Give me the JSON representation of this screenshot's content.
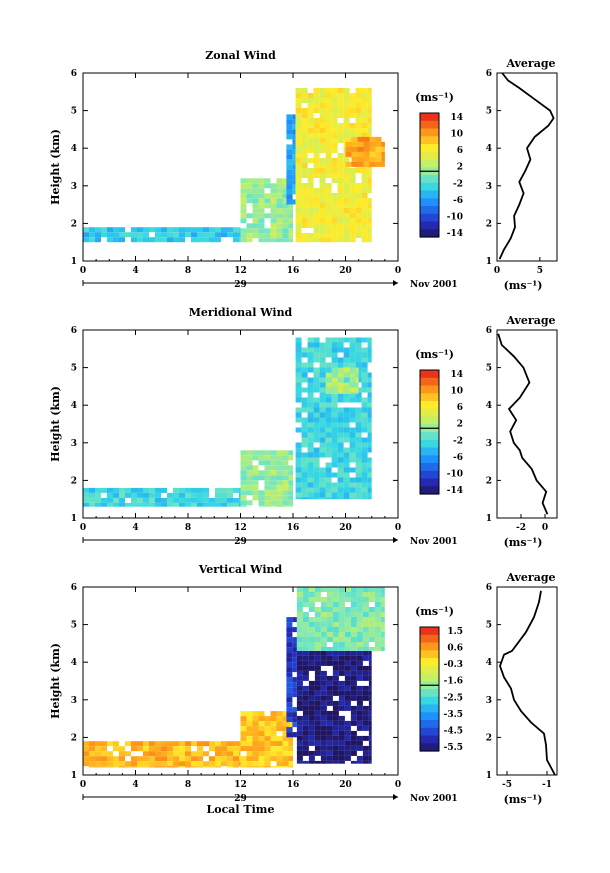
{
  "panels": [
    {
      "title": "Zonal Wind",
      "ylabel": "Height (km)",
      "unit": "(ms⁻¹)",
      "yticks": [
        "1",
        "2",
        "3",
        "4",
        "5",
        "6"
      ],
      "xticks": [
        "0",
        "4",
        "8",
        "12",
        "16",
        "20",
        "0"
      ],
      "day": "29",
      "month": "Nov 2001",
      "colorbar_ticks": [
        "14",
        "10",
        "6",
        "2",
        "-2",
        "-6",
        "-10",
        "-14"
      ],
      "avg_title": "Average",
      "avg_xticks": [
        "0",
        "5"
      ],
      "avg_xlabel": "(ms⁻¹)"
    },
    {
      "title": "Meridional Wind",
      "ylabel": "Height (km)",
      "unit": "(ms⁻¹)",
      "yticks": [
        "1",
        "2",
        "3",
        "4",
        "5",
        "6"
      ],
      "xticks": [
        "0",
        "4",
        "8",
        "12",
        "16",
        "20",
        "0"
      ],
      "day": "29",
      "month": "Nov 2001",
      "colorbar_ticks": [
        "14",
        "10",
        "6",
        "2",
        "-2",
        "-6",
        "-10",
        "-14"
      ],
      "avg_title": "Average",
      "avg_xticks": [
        "-2",
        "0"
      ],
      "avg_xlabel": "(ms⁻¹)"
    },
    {
      "title": "Vertical Wind",
      "ylabel": "Height (km)",
      "unit": "(ms⁻¹)",
      "yticks": [
        "1",
        "2",
        "3",
        "4",
        "5",
        "6"
      ],
      "xticks": [
        "0",
        "4",
        "8",
        "12",
        "16",
        "20",
        "0"
      ],
      "day": "29",
      "month": "Nov 2001",
      "xlabel": "Local Time",
      "colorbar_ticks": [
        "1.5",
        "0.6",
        "-0.3",
        "-1.6",
        "-2.5",
        "-3.5",
        "-4.5",
        "-5.5"
      ],
      "avg_title": "Average",
      "avg_xticks": [
        "-5",
        "-1"
      ],
      "avg_xlabel": "(ms⁻¹)"
    }
  ],
  "chart_data": [
    {
      "type": "heatmap",
      "title": "Zonal Wind",
      "xlabel": "",
      "ylabel": "Height (km)",
      "xlim": [
        0,
        24
      ],
      "ylim": [
        1,
        6
      ],
      "clim": [
        -16,
        16
      ],
      "colorbar_ticks": [
        14,
        10,
        6,
        2,
        -2,
        -6,
        -10,
        -14
      ],
      "regions": [
        {
          "x": [
            0,
            12
          ],
          "y": [
            1.5,
            1.9
          ],
          "value": -4
        },
        {
          "x": [
            12,
            16
          ],
          "y": [
            1.5,
            3.2
          ],
          "value": 1
        },
        {
          "x": [
            15.5,
            16.2
          ],
          "y": [
            2.5,
            4.9
          ],
          "value": -6
        },
        {
          "x": [
            16.2,
            22
          ],
          "y": [
            1.5,
            5.6
          ],
          "value": 6
        },
        {
          "x": [
            20,
            23
          ],
          "y": [
            3.5,
            4.3
          ],
          "value": 10
        }
      ]
    },
    {
      "type": "line",
      "title": "Average",
      "xlabel": "(ms⁻¹)",
      "ylabel": "",
      "xlim": [
        0,
        7
      ],
      "ylim": [
        1,
        6
      ],
      "series": [
        {
          "x": [
            0.3,
            0.8,
            1.6,
            2.1,
            2.0,
            2.6,
            3.1,
            2.6,
            3.3,
            3.9,
            3.5,
            4.4,
            6.0,
            6.6,
            6.2,
            4.4,
            2.6,
            1.3,
            0.6
          ],
          "y": [
            1.05,
            1.3,
            1.6,
            1.9,
            2.2,
            2.5,
            2.8,
            3.1,
            3.4,
            3.7,
            4.0,
            4.3,
            4.6,
            4.8,
            5.0,
            5.3,
            5.6,
            5.8,
            6.0
          ]
        }
      ]
    },
    {
      "type": "heatmap",
      "title": "Meridional Wind",
      "xlabel": "",
      "ylabel": "Height (km)",
      "xlim": [
        0,
        24
      ],
      "ylim": [
        1,
        6
      ],
      "clim": [
        -16,
        16
      ],
      "colorbar_ticks": [
        14,
        10,
        6,
        2,
        -2,
        -6,
        -10,
        -14
      ],
      "regions": [
        {
          "x": [
            0,
            12
          ],
          "y": [
            1.3,
            1.8
          ],
          "value": -3
        },
        {
          "x": [
            12,
            16
          ],
          "y": [
            1.3,
            2.8
          ],
          "value": 1
        },
        {
          "x": [
            16.2,
            22
          ],
          "y": [
            1.5,
            5.8
          ],
          "value": -3
        },
        {
          "x": [
            18.5,
            21
          ],
          "y": [
            4.3,
            5.0
          ],
          "value": 2
        }
      ]
    },
    {
      "type": "line",
      "title": "Average",
      "xlabel": "(ms⁻¹)",
      "ylabel": "",
      "xlim": [
        -4,
        1
      ],
      "ylim": [
        1,
        6
      ],
      "series": [
        {
          "x": [
            0.2,
            -0.2,
            0.1,
            -0.7,
            -1.1,
            -1.9,
            -2.1,
            -2.6,
            -2.9,
            -2.4,
            -3.0,
            -2.1,
            -1.3,
            -1.8,
            -2.6,
            -3.6,
            -3.9
          ],
          "y": [
            1.1,
            1.4,
            1.7,
            2.0,
            2.3,
            2.6,
            2.8,
            3.0,
            3.3,
            3.6,
            3.9,
            4.2,
            4.6,
            5.0,
            5.3,
            5.6,
            5.9
          ]
        }
      ]
    },
    {
      "type": "heatmap",
      "title": "Vertical Wind",
      "xlabel": "Local Time",
      "ylabel": "Height (km)",
      "xlim": [
        0,
        24
      ],
      "ylim": [
        1,
        6
      ],
      "clim": [
        -6,
        2
      ],
      "colorbar_ticks": [
        1.5,
        0.6,
        -0.3,
        -1.6,
        -2.5,
        -3.5,
        -4.5,
        -5.5
      ],
      "regions": [
        {
          "x": [
            0,
            12
          ],
          "y": [
            1.2,
            1.9
          ],
          "value": 0.3
        },
        {
          "x": [
            12,
            16
          ],
          "y": [
            1.2,
            2.7
          ],
          "value": 0.1
        },
        {
          "x": [
            15.5,
            16.3
          ],
          "y": [
            2.0,
            5.2
          ],
          "value": -5
        },
        {
          "x": [
            16.3,
            22
          ],
          "y": [
            1.3,
            4.3
          ],
          "value": -5.8
        },
        {
          "x": [
            16.3,
            23
          ],
          "y": [
            4.3,
            6.0
          ],
          "value": -2
        }
      ]
    },
    {
      "type": "line",
      "title": "Average",
      "xlabel": "(ms⁻¹)",
      "ylabel": "",
      "xlim": [
        -6,
        0
      ],
      "ylim": [
        1,
        6
      ],
      "series": [
        {
          "x": [
            -0.2,
            -1.0,
            -1.1,
            -1.3,
            -2.6,
            -3.6,
            -4.3,
            -4.6,
            -5.3,
            -5.7,
            -5.3,
            -4.5,
            -3.1,
            -2.3,
            -1.8,
            -1.6
          ],
          "y": [
            1.0,
            1.4,
            1.8,
            2.1,
            2.4,
            2.7,
            3.0,
            3.3,
            3.6,
            3.9,
            4.2,
            4.3,
            4.8,
            5.2,
            5.6,
            5.9
          ]
        }
      ]
    }
  ]
}
